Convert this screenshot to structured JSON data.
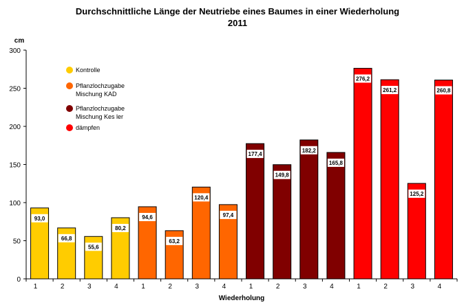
{
  "chart_data": {
    "type": "bar",
    "title_line1": "Durchschnittliche Länge der Neutriebe eines Baumes in einer Wiederholung",
    "title_line2": "2011",
    "ylabel": "cm",
    "xlabel": "Wiederholung",
    "ylim": [
      0,
      300
    ],
    "yticks": [
      0,
      50,
      100,
      150,
      200,
      250,
      300
    ],
    "categories": [
      "1",
      "2",
      "3",
      "4",
      "1",
      "2",
      "3",
      "4",
      "1",
      "2",
      "3",
      "4",
      "1",
      "2",
      "3",
      "4"
    ],
    "values": [
      93.0,
      66.8,
      55.6,
      80.2,
      94.6,
      63.2,
      120.4,
      97.4,
      177.4,
      149.8,
      182.2,
      165.8,
      276.2,
      261.2,
      125.2,
      260.8
    ],
    "value_labels": [
      "93,0",
      "66,8",
      "55,6",
      "80,2",
      "94,6",
      "63,2",
      "120,4",
      "97,4",
      "177,4",
      "149,8",
      "182,2",
      "165,8",
      "276,2",
      "261,2",
      "125,2",
      "260,8"
    ],
    "groups": [
      0,
      0,
      0,
      0,
      1,
      1,
      1,
      1,
      2,
      2,
      2,
      2,
      3,
      3,
      3,
      3
    ],
    "series": [
      {
        "name_lines": [
          "Kontrolle"
        ],
        "color": "#FFCC00"
      },
      {
        "name_lines": [
          "Pflanzlochzugabe",
          "Mischung KAD"
        ],
        "color": "#FF6600"
      },
      {
        "name_lines": [
          "Pflanzlochzugabe",
          "Mischung Kes ler"
        ],
        "color": "#800000"
      },
      {
        "name_lines": [
          "dämpfen"
        ],
        "color": "#FF0000"
      }
    ],
    "legend_position": "top-left"
  }
}
